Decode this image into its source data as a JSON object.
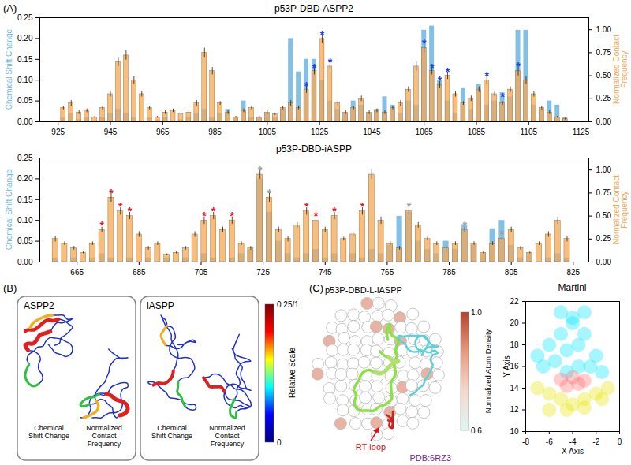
{
  "chart_data": [
    {
      "type": "bar",
      "title": "p53P-DBD-ASPP2",
      "x": [
        927,
        930,
        933,
        936,
        939,
        942,
        945,
        948,
        951,
        954,
        957,
        960,
        963,
        966,
        969,
        972,
        975,
        978,
        981,
        984,
        987,
        990,
        993,
        996,
        999,
        1002,
        1005,
        1008,
        1011,
        1014,
        1017,
        1020,
        1023,
        1026,
        1029,
        1032,
        1035,
        1038,
        1041,
        1044,
        1047,
        1050,
        1053,
        1056,
        1059,
        1062,
        1065,
        1068,
        1071,
        1074,
        1077,
        1080,
        1083,
        1086,
        1089,
        1092,
        1095,
        1098,
        1101,
        1104,
        1107,
        1110,
        1113,
        1116,
        1119
      ],
      "xlim": [
        918,
        1128
      ],
      "xticks": [
        925,
        945,
        965,
        985,
        1005,
        1025,
        1045,
        1065,
        1085,
        1105,
        1125
      ],
      "ylim": [
        0,
        0.25
      ],
      "yticks": [
        {
          "value": 0,
          "label": "0.00"
        },
        {
          "value": 0.05,
          "label": "0.05"
        },
        {
          "value": 0.1,
          "label": "0.10"
        },
        {
          "value": 0.15,
          "label": "0.15"
        },
        {
          "value": 0.2,
          "label": "0.20"
        },
        {
          "value": 0.25,
          "label": "0.25"
        }
      ],
      "ylabel": "Chemical Shift Change",
      "y2lim": [
        0,
        1.13
      ],
      "y2ticks": [
        {
          "value": 0,
          "label": "0.00"
        },
        {
          "value": 0.25,
          "label": "0.25"
        },
        {
          "value": 0.5,
          "label": "0.50"
        },
        {
          "value": 0.75,
          "label": "0.75"
        },
        {
          "value": 1,
          "label": "1.00"
        }
      ],
      "y2label": "Normalized Contact Frequency",
      "series": [
        {
          "color": "#74b9e3",
          "values": [
            0.01,
            0.02,
            0.005,
            0.01,
            0,
            0.01,
            0.02,
            0.03,
            0.02,
            0.01,
            0,
            0.01,
            0.005,
            0.01,
            0,
            0.005,
            0.01,
            0.02,
            0.03,
            0.01,
            0.02,
            0.03,
            0.01,
            0.05,
            0.01,
            0.01,
            0.02,
            0.01,
            0.03,
            0.2,
            0.12,
            0.15,
            0.15,
            0.1,
            0.05,
            0.03,
            0.02,
            0.05,
            0.04,
            0.02,
            0.03,
            0.06,
            0.04,
            0.02,
            0.05,
            0.04,
            0.22,
            0.23,
            0.1,
            0.05,
            0.02,
            0.08,
            0.03,
            0.09,
            0.04,
            0.05,
            0.07,
            0.06,
            0.22,
            0.22,
            0.04,
            0.03,
            0.05,
            0.04,
            0.01
          ]
        },
        {
          "color": "#f5a853",
          "axis": "y2",
          "values": [
            0.15,
            0.2,
            0.1,
            0.12,
            0.05,
            0.15,
            0.3,
            0.65,
            0.72,
            0.45,
            0.3,
            0.15,
            0.05,
            0.1,
            0.12,
            0.08,
            0.1,
            0.2,
            0.75,
            0.55,
            0.2,
            0.1,
            0.05,
            0.12,
            0.15,
            0.05,
            0.1,
            0.08,
            0.15,
            0.2,
            0.15,
            0.35,
            0.55,
            0.9,
            0.6,
            0.2,
            0.1,
            0.15,
            0.25,
            0.1,
            0.12,
            0.1,
            0.15,
            0.2,
            0.35,
            0.6,
            0.8,
            0.55,
            0.4,
            0.5,
            0.3,
            0.2,
            0.25,
            0.35,
            0.45,
            0.3,
            0.2,
            0.35,
            0.55,
            0.45,
            0.3,
            0.15,
            0.1,
            0.05,
            0.03
          ],
          "errors": [
            0.02,
            0.03,
            0.02,
            0.02,
            0.01,
            0.02,
            0.03,
            0.05,
            0.05,
            0.04,
            0.03,
            0.02,
            0.01,
            0.02,
            0.02,
            0.01,
            0.02,
            0.03,
            0.05,
            0.04,
            0.02,
            0.02,
            0.01,
            0.02,
            0.02,
            0.01,
            0.02,
            0.01,
            0.02,
            0.03,
            0.02,
            0.04,
            0.04,
            0.05,
            0.04,
            0.02,
            0.02,
            0.02,
            0.03,
            0.02,
            0.02,
            0.02,
            0.02,
            0.03,
            0.03,
            0.05,
            0.05,
            0.04,
            0.04,
            0.04,
            0.03,
            0.02,
            0.03,
            0.03,
            0.04,
            0.03,
            0.02,
            0.03,
            0.05,
            0.04,
            0.03,
            0.02,
            0.02,
            0.01,
            0.01
          ]
        }
      ],
      "annotations": [
        {
          "text": "*",
          "x": 1020,
          "y": 0.42,
          "color": "#2040e0",
          "axis": "y2"
        },
        {
          "text": "*",
          "x": 1023,
          "y": 0.62,
          "color": "#2040e0",
          "axis": "y2"
        },
        {
          "text": "*",
          "x": 1026,
          "y": 0.98,
          "color": "#2040e0",
          "axis": "y2"
        },
        {
          "text": "*",
          "x": 1029,
          "y": 0.68,
          "color": "#2040e0",
          "axis": "y2"
        },
        {
          "text": "*",
          "x": 1065,
          "y": 0.88,
          "color": "#2040e0",
          "axis": "y2"
        },
        {
          "text": "*",
          "x": 1068,
          "y": 0.62,
          "color": "#2040e0",
          "axis": "y2"
        },
        {
          "text": "*",
          "x": 1071,
          "y": 0.48,
          "color": "#2040e0",
          "axis": "y2"
        },
        {
          "text": "*",
          "x": 1074,
          "y": 0.57,
          "color": "#2040e0",
          "axis": "y2"
        },
        {
          "text": "*",
          "x": 1089,
          "y": 0.53,
          "color": "#2040e0",
          "axis": "y2"
        },
        {
          "text": "*",
          "x": 1095,
          "y": 0.3,
          "color": "#2040e0",
          "axis": "y2"
        },
        {
          "text": "*",
          "x": 1101,
          "y": 0.63,
          "color": "#2040e0",
          "axis": "y2"
        }
      ]
    },
    {
      "type": "bar",
      "title": "p53P-DBD-iASPP",
      "x": [
        658,
        661,
        664,
        667,
        670,
        673,
        676,
        679,
        682,
        685,
        688,
        691,
        694,
        697,
        700,
        703,
        706,
        709,
        712,
        715,
        718,
        721,
        724,
        727,
        730,
        733,
        736,
        739,
        742,
        745,
        748,
        751,
        754,
        757,
        760,
        763,
        766,
        769,
        772,
        775,
        778,
        781,
        784,
        787,
        790,
        793,
        796,
        799,
        802,
        805,
        808,
        811,
        814,
        817,
        820,
        823
      ],
      "xlim": [
        653,
        830
      ],
      "xticks": [
        665,
        685,
        705,
        725,
        745,
        765,
        785,
        805,
        825
      ],
      "ylim": [
        0,
        0.25
      ],
      "yticks": [
        {
          "value": 0,
          "label": "0.00"
        },
        {
          "value": 0.05,
          "label": "0.05"
        },
        {
          "value": 0.1,
          "label": "0.10"
        },
        {
          "value": 0.15,
          "label": "0.15"
        },
        {
          "value": 0.2,
          "label": "0.20"
        },
        {
          "value": 0.25,
          "label": "0.25"
        }
      ],
      "ylabel": "Chemical Shift Change",
      "y2lim": [
        0,
        1.13
      ],
      "y2ticks": [
        {
          "value": 0,
          "label": "0.00"
        },
        {
          "value": 0.25,
          "label": "0.25"
        },
        {
          "value": 0.5,
          "label": "0.50"
        },
        {
          "value": 0.75,
          "label": "0.75"
        },
        {
          "value": 1,
          "label": "1.00"
        }
      ],
      "y2label": "Normalized Contact Frequency",
      "series": [
        {
          "color": "#74b9e3",
          "values": [
            0.01,
            0,
            0.01,
            0,
            0.01,
            0.02,
            0.01,
            0,
            0.01,
            0,
            0.01,
            0,
            0.01,
            0,
            0.01,
            0,
            0.02,
            0.01,
            0,
            0.01,
            0.02,
            0.03,
            0.2,
            0.12,
            0.05,
            0.02,
            0.01,
            0.02,
            0.03,
            0.01,
            0.02,
            0,
            0.02,
            0.01,
            0.03,
            0.02,
            0.04,
            0.11,
            0.12,
            0.05,
            0.03,
            0.02,
            0.05,
            0.03,
            0.09,
            0.04,
            0.02,
            0.08,
            0.1,
            0.04,
            0.01,
            0.02,
            0,
            0.01,
            0.02,
            0.01
          ]
        },
        {
          "color": "#f5a853",
          "axis": "y2",
          "values": [
            0.25,
            0.2,
            0.15,
            0.1,
            0.2,
            0.35,
            0.7,
            0.55,
            0.5,
            0.3,
            0.15,
            0.2,
            0.08,
            0.1,
            0.15,
            0.3,
            0.45,
            0.5,
            0.35,
            0.45,
            0.2,
            0.15,
            0.95,
            0.7,
            0.35,
            0.25,
            0.4,
            0.55,
            0.45,
            0.35,
            0.5,
            0.25,
            0.3,
            0.55,
            0.95,
            0.45,
            0.2,
            0.15,
            0.55,
            0.4,
            0.25,
            0.2,
            0.15,
            0.2,
            0.35,
            0.2,
            0.1,
            0.2,
            0.25,
            0.35,
            0.15,
            0.1,
            0.2,
            0.3,
            0.45,
            0.25
          ],
          "errors": [
            0.03,
            0.02,
            0.02,
            0.01,
            0.02,
            0.03,
            0.05,
            0.04,
            0.04,
            0.03,
            0.02,
            0.02,
            0.01,
            0.01,
            0.02,
            0.03,
            0.04,
            0.04,
            0.03,
            0.04,
            0.02,
            0.02,
            0.05,
            0.05,
            0.03,
            0.03,
            0.03,
            0.04,
            0.04,
            0.03,
            0.04,
            0.02,
            0.03,
            0.04,
            0.05,
            0.04,
            0.02,
            0.02,
            0.04,
            0.03,
            0.02,
            0.02,
            0.02,
            0.02,
            0.03,
            0.02,
            0.01,
            0.02,
            0.02,
            0.03,
            0.02,
            0.01,
            0.02,
            0.03,
            0.04,
            0.03
          ]
        }
      ],
      "annotations": [
        {
          "text": "*",
          "x": 673,
          "y": 0.43,
          "color": "#e0202a",
          "axis": "y2"
        },
        {
          "text": "*",
          "x": 676,
          "y": 0.78,
          "color": "#e0202a",
          "axis": "y2"
        },
        {
          "text": "*",
          "x": 679,
          "y": 0.63,
          "color": "#e0202a",
          "axis": "y2"
        },
        {
          "text": "*",
          "x": 682,
          "y": 0.58,
          "color": "#e0202a",
          "axis": "y2"
        },
        {
          "text": "*",
          "x": 706,
          "y": 0.53,
          "color": "#e0202a",
          "axis": "y2"
        },
        {
          "text": "*",
          "x": 709,
          "y": 0.58,
          "color": "#e0202a",
          "axis": "y2"
        },
        {
          "text": "*",
          "x": 715,
          "y": 0.53,
          "color": "#e0202a",
          "axis": "y2"
        },
        {
          "text": "*",
          "x": 739,
          "y": 0.63,
          "color": "#e0202a",
          "axis": "y2"
        },
        {
          "text": "*",
          "x": 742,
          "y": 0.53,
          "color": "#e0202a",
          "axis": "y2"
        },
        {
          "text": "*",
          "x": 748,
          "y": 0.58,
          "color": "#e0202a",
          "axis": "y2"
        },
        {
          "text": "*",
          "x": 757,
          "y": 0.63,
          "color": "#e0202a",
          "axis": "y2"
        },
        {
          "text": "*",
          "x": 724,
          "y": 1.03,
          "color": "#a0a0a0",
          "axis": "y2"
        },
        {
          "text": "*",
          "x": 727,
          "y": 0.78,
          "color": "#a0a0a0",
          "axis": "y2"
        },
        {
          "text": "*",
          "x": 772,
          "y": 0.63,
          "color": "#a0a0a0",
          "axis": "y2"
        },
        {
          "text": "*",
          "x": 790,
          "y": 0.43,
          "color": "#a0a0a0",
          "axis": "y2"
        },
        {
          "text": "*",
          "x": 802,
          "y": 0.33,
          "color": "#a0a0a0",
          "axis": "y2"
        }
      ]
    },
    {
      "type": "scatter",
      "title": "Martini",
      "xlabel": "X Axis",
      "ylabel": "Y Axis",
      "xlim": [
        -8,
        0
      ],
      "xticks": [
        -8,
        -6,
        -4,
        -2,
        0
      ],
      "ylim": [
        10,
        22
      ],
      "yticks": [
        10,
        12,
        14,
        16,
        18,
        20,
        22
      ],
      "series": [
        {
          "color": "#00e5ff",
          "x": [
            -7,
            -6,
            -5,
            -4,
            -3,
            -2,
            -6.5,
            -5.5,
            -4.5,
            -3.5,
            -2.5,
            -1.5,
            -5,
            -4,
            -3,
            -4.5,
            -3.5
          ],
          "y": [
            17,
            18,
            19,
            20,
            19,
            17,
            16,
            16.5,
            17.5,
            18,
            16,
            15.5,
            21,
            20.5,
            21,
            15.5,
            16
          ]
        },
        {
          "color": "#e5e500",
          "x": [
            -7,
            -6,
            -5,
            -4,
            -3,
            -2,
            -1,
            -6,
            -4.5,
            -3,
            -1.5
          ],
          "y": [
            14,
            13.5,
            13,
            12.5,
            13,
            13.5,
            14,
            12,
            12,
            12.2,
            13
          ]
        },
        {
          "color": "#ff6f6f",
          "x": [
            -5,
            -4,
            -3,
            -4.5,
            -3.5
          ],
          "y": [
            14.8,
            15,
            14.7,
            14.2,
            14.4
          ]
        }
      ]
    }
  ],
  "panels": {
    "labels": [
      "(A)",
      "(B)",
      "(C)"
    ],
    "B": {
      "boxes": [
        {
          "title": "ASPP2",
          "captions": [
            "Chemical Shift Change",
            "Normalized Contact Frequency"
          ]
        },
        {
          "title": "iASPP",
          "captions": [
            "Chemical Shift Change",
            "Normalized Contact Frequency"
          ]
        }
      ],
      "colorbar": {
        "label": "Relative Scale",
        "range": [
          0,
          1
        ],
        "ticks": [
          {
            "value": 0,
            "label": "0"
          },
          {
            "value": 1,
            "label": "0.25/1"
          }
        ]
      }
    },
    "C": {
      "title": "p53P-DBD-L-iASPP",
      "loop_label": "RT-loop",
      "pdb_label": "PDB:6RZ3",
      "colorbar": {
        "label": "Normalized Atom Density",
        "range": [
          0.6,
          1.0
        ],
        "ticks": [
          {
            "value": 0.6,
            "label": "0.6"
          },
          {
            "value": 1.0,
            "label": "1.0"
          }
        ]
      }
    }
  }
}
